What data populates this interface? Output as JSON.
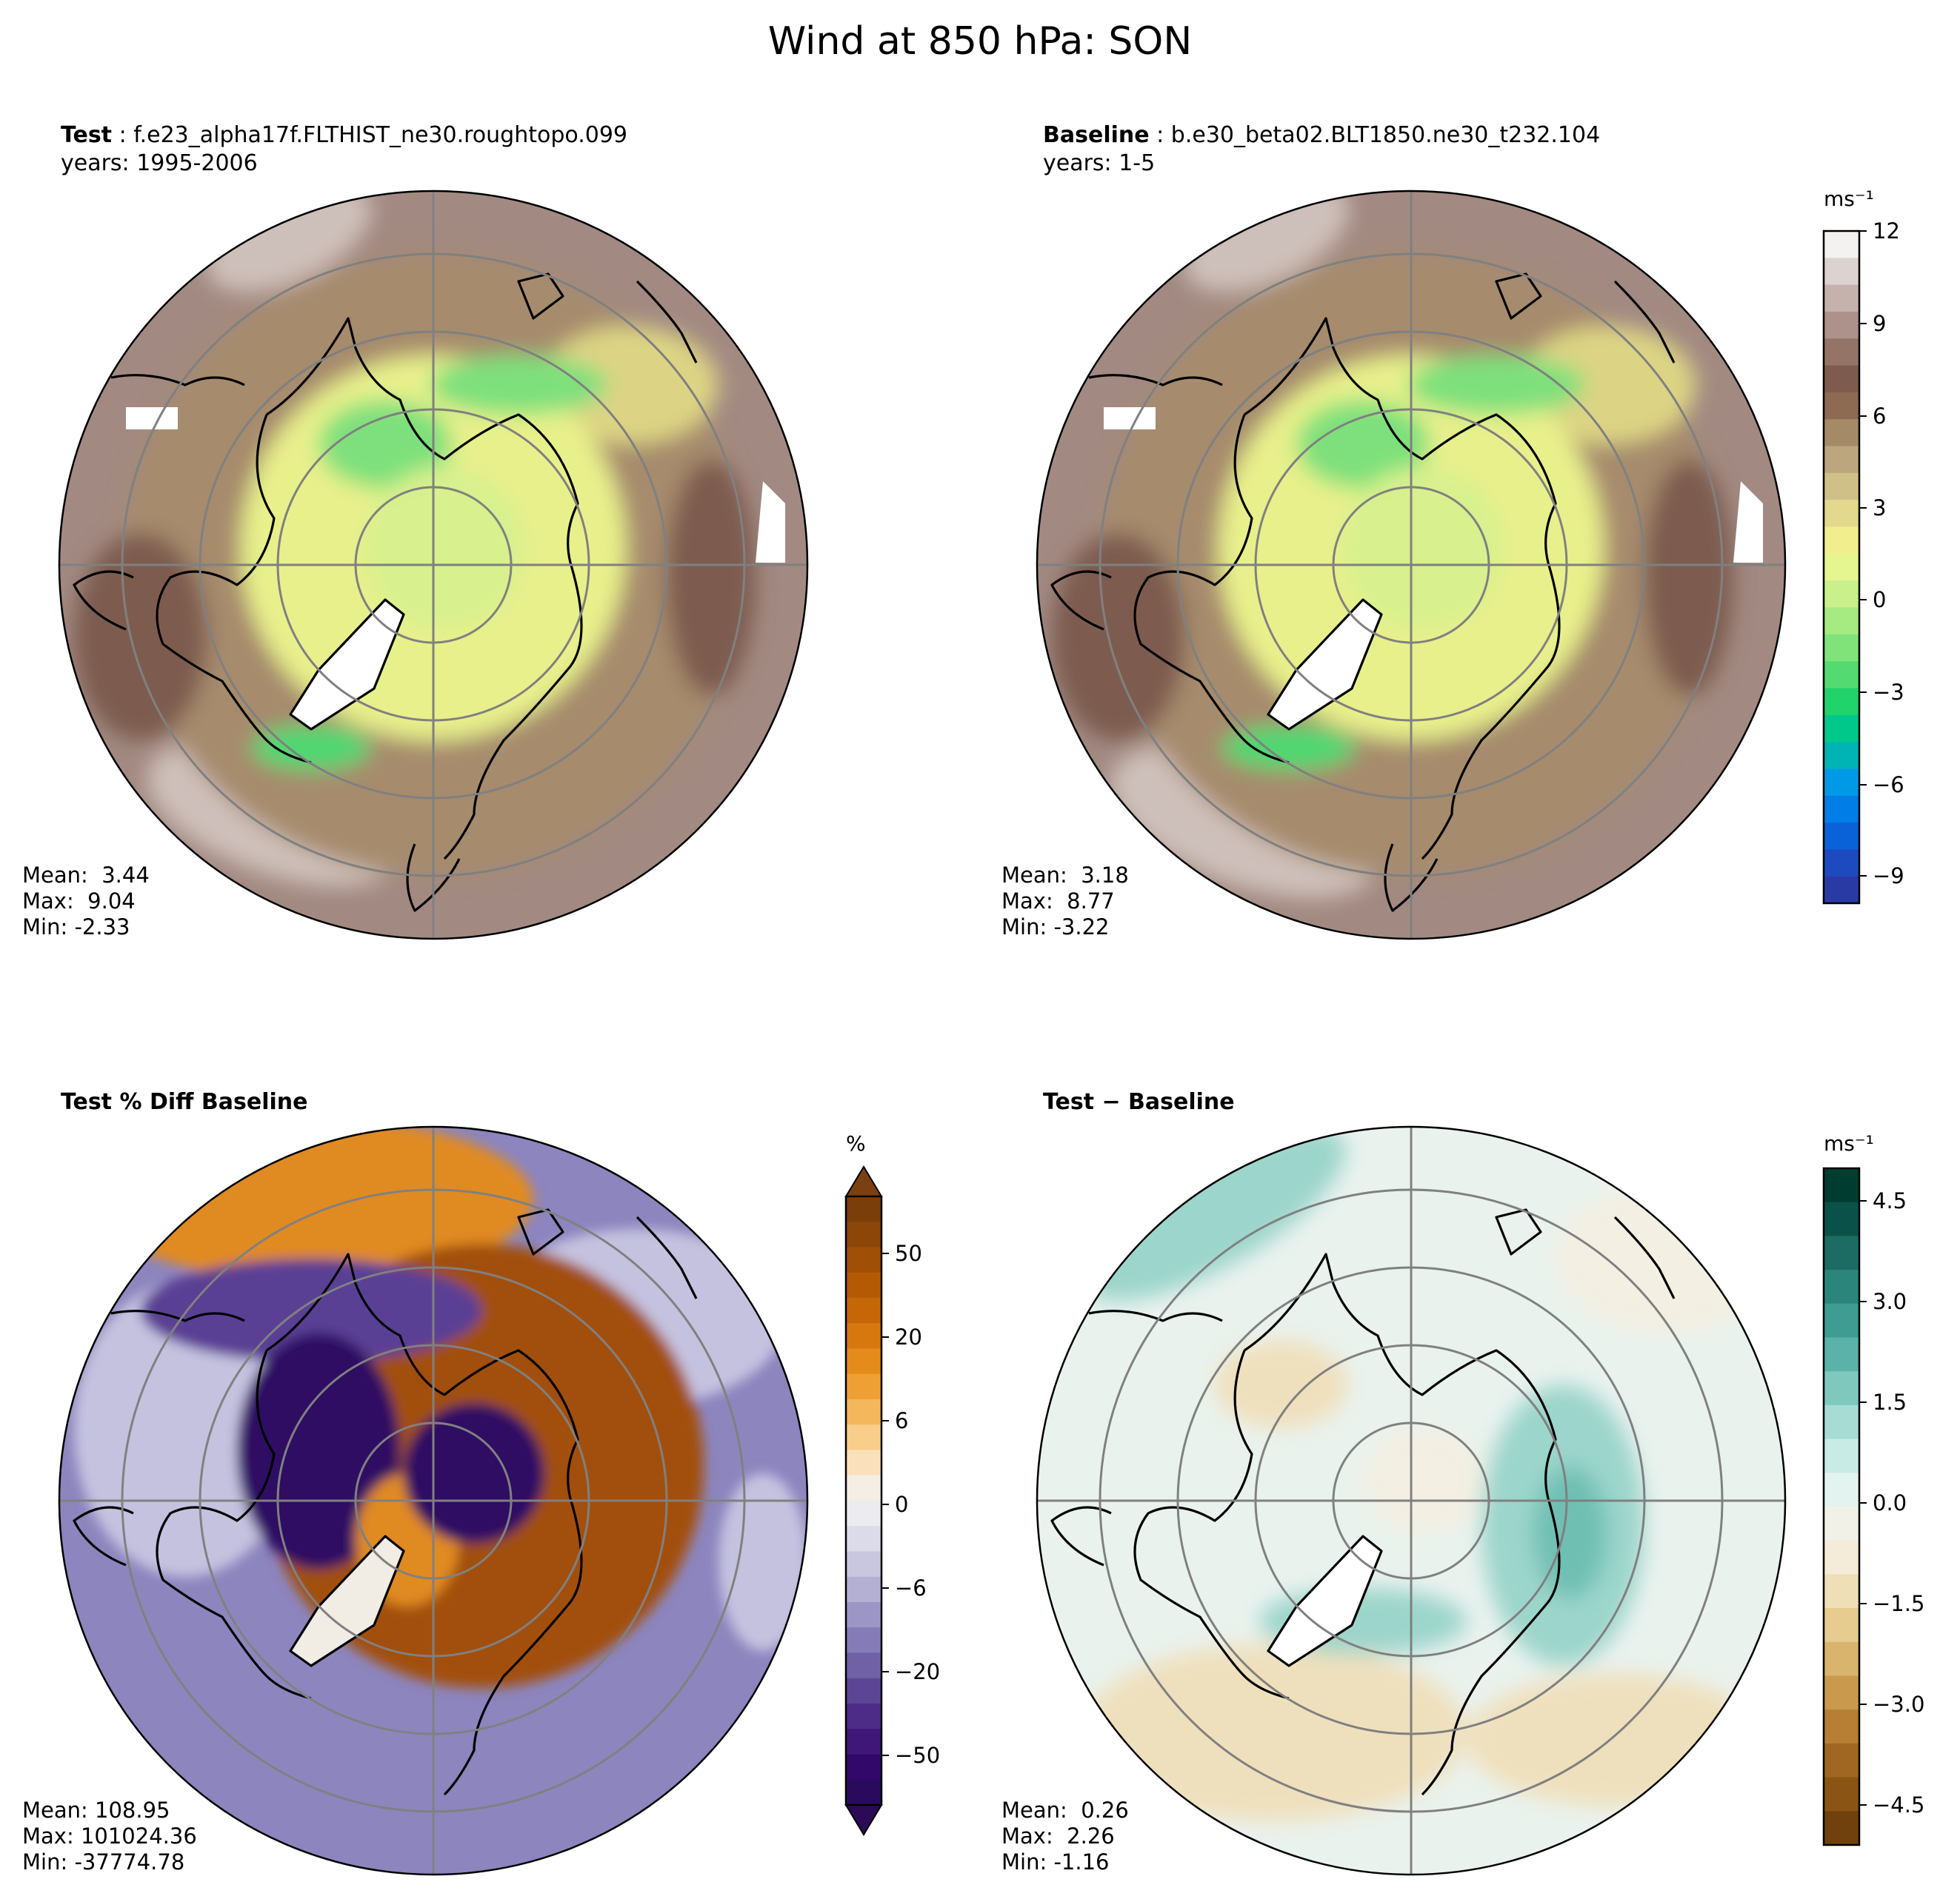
{
  "figure_title": "Wind at 850 hPa: SON",
  "panels": {
    "test": {
      "label": "Test",
      "case": "f.e23_alpha17f.FLTHIST_ne30.roughtopo.099",
      "years": "years: 1995-2006",
      "mean": "Mean:  3.44",
      "max": "Max:  9.04",
      "min": "Min: -2.33"
    },
    "baseline": {
      "label": "Baseline",
      "case": "b.e30_beta02.BLT1850.ne30_t232.104",
      "years": "years: 1-5",
      "mean": "Mean:  3.18",
      "max": "Max:  8.77",
      "min": "Min: -3.22"
    },
    "pctdiff": {
      "label": "Test % Diff Baseline",
      "mean": "Mean: 108.95",
      "max": "Max: 101024.36",
      "min": "Min: -37774.78"
    },
    "diff": {
      "label": "Test − Baseline",
      "mean": "Mean:  0.26",
      "max": "Max:  2.26",
      "min": "Min: -1.16"
    }
  },
  "colorbars": {
    "wind": {
      "unit": "ms⁻¹",
      "ticks": [
        "12",
        "9",
        "6",
        "3",
        "0",
        "−3",
        "−6",
        "−9"
      ],
      "colors": [
        "#f4f2f1",
        "#dcd2d0",
        "#c5b2ad",
        "#ad928b",
        "#957468",
        "#7d5c4f",
        "#8d6b52",
        "#a58a67",
        "#bca67e",
        "#cfc088",
        "#e2d98e",
        "#f1ee8e",
        "#e5f58f",
        "#c9f08a",
        "#a6ea82",
        "#80e37a",
        "#53db71",
        "#20d36a",
        "#00c88a",
        "#00b3b4",
        "#0099e6",
        "#007de6",
        "#0a62d8",
        "#1d4bbf",
        "#2a3aa5"
      ]
    },
    "pct": {
      "unit": "%",
      "ticks": [
        "50",
        "20",
        "6",
        "0",
        "−6",
        "−20",
        "−50"
      ],
      "colors": [
        "#7a3e0a",
        "#8c4608",
        "#a04f06",
        "#b45a05",
        "#c56707",
        "#d6780e",
        "#e48b1c",
        "#eea034",
        "#f5b75b",
        "#f9cd8a",
        "#fbe1bb",
        "#f4eee4",
        "#ebebf0",
        "#dcdbea",
        "#c9c7e0",
        "#b3b0d4",
        "#9c96c6",
        "#857bb6",
        "#7060a6",
        "#5d4596",
        "#4d2c87",
        "#3f1779",
        "#33086b",
        "#2a0a5c"
      ],
      "cap_top": "#7a4010",
      "cap_bottom": "#2d0a55"
    },
    "diff": {
      "unit": "ms⁻¹",
      "ticks": [
        "4.5",
        "3.0",
        "1.5",
        "0.0",
        "−1.5",
        "−3.0",
        "−4.5"
      ],
      "colors": [
        "#003d30",
        "#0a5249",
        "#1c6c63",
        "#2c857b",
        "#3e9c92",
        "#5ab2a8",
        "#7ec8be",
        "#a6dcd4",
        "#c9ebe6",
        "#e2f3f0",
        "#f2f1e8",
        "#f4ecd8",
        "#efdfb6",
        "#e6cc8f",
        "#d9b46d",
        "#c99a4e",
        "#b67f34",
        "#a06722",
        "#8a5414",
        "#70410c"
      ]
    }
  },
  "map_colors": {
    "panel1": {
      "ocean_mid": "#a68b6d",
      "outer_ring": "#a28a82",
      "storm_track": "#cdbfba",
      "polar": "#e8f08c",
      "arctic_core": "#d8f08e",
      "green": "#7ee07b",
      "bright_green": "#4ed872",
      "dark_brown": "#7d5c4f",
      "yellow": "#dcd484"
    },
    "panel3": {
      "outer_purple": "#8c85be",
      "light_purple": "#c4c2df",
      "orange_ring": "#a24f08",
      "dark_purple": "#2e0a63",
      "mid_purple": "#5a3f94",
      "orange": "#e08a22",
      "pale": "#f1ece4"
    },
    "panel4": {
      "base": "#eaf2ee",
      "teal": "#9cd5cb",
      "teal_dark": "#6fbfb3",
      "tan": "#efe0bd",
      "tan_dark": "#e4cd94",
      "cream": "#f3efe2"
    }
  }
}
